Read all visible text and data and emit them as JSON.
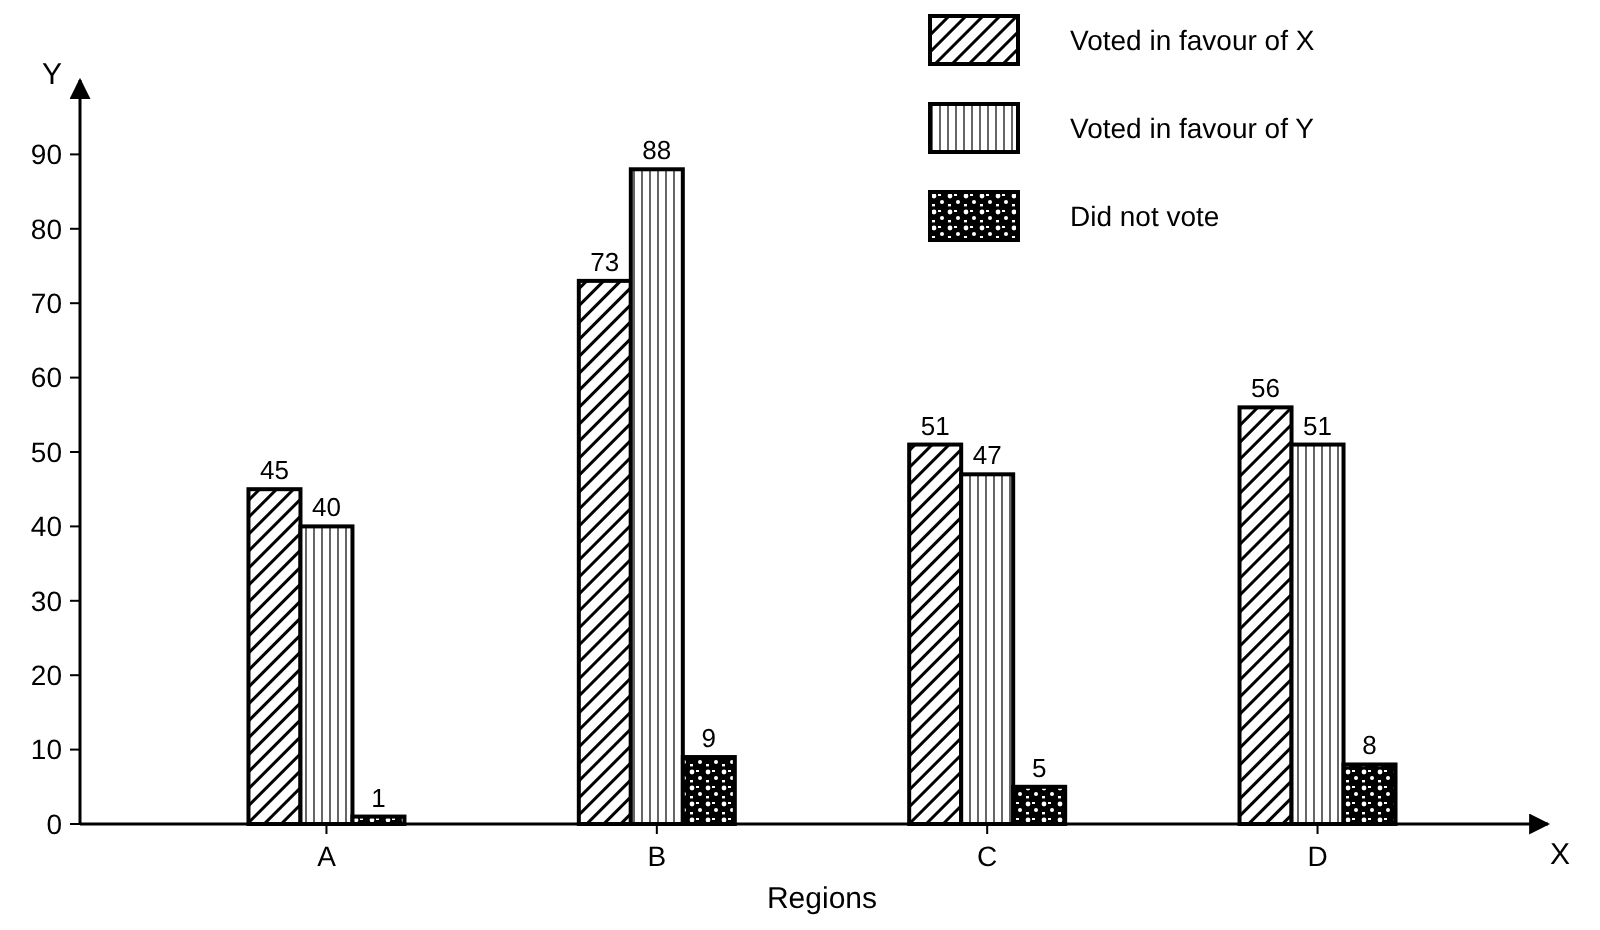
{
  "chart_data": {
    "type": "bar",
    "xlabel": "Regions",
    "ylabel": "Y",
    "annotations": [
      "X"
    ],
    "categories": [
      "A",
      "B",
      "C",
      "D"
    ],
    "series": [
      {
        "name": "Voted in favour of X",
        "color": "#000000",
        "values": [
          45,
          73,
          51,
          56
        ]
      },
      {
        "name": "Voted in favour of Y",
        "color": "#000000",
        "values": [
          40,
          88,
          47,
          51
        ]
      },
      {
        "name": "Did not vote",
        "color": "#000000",
        "values": [
          1,
          9,
          5,
          8
        ]
      }
    ],
    "ylim": [
      0,
      100
    ],
    "yticks": [
      0,
      10,
      20,
      30,
      40,
      50,
      60,
      70,
      80,
      90
    ],
    "data_labels": true,
    "legend": "top right",
    "grid": false
  }
}
